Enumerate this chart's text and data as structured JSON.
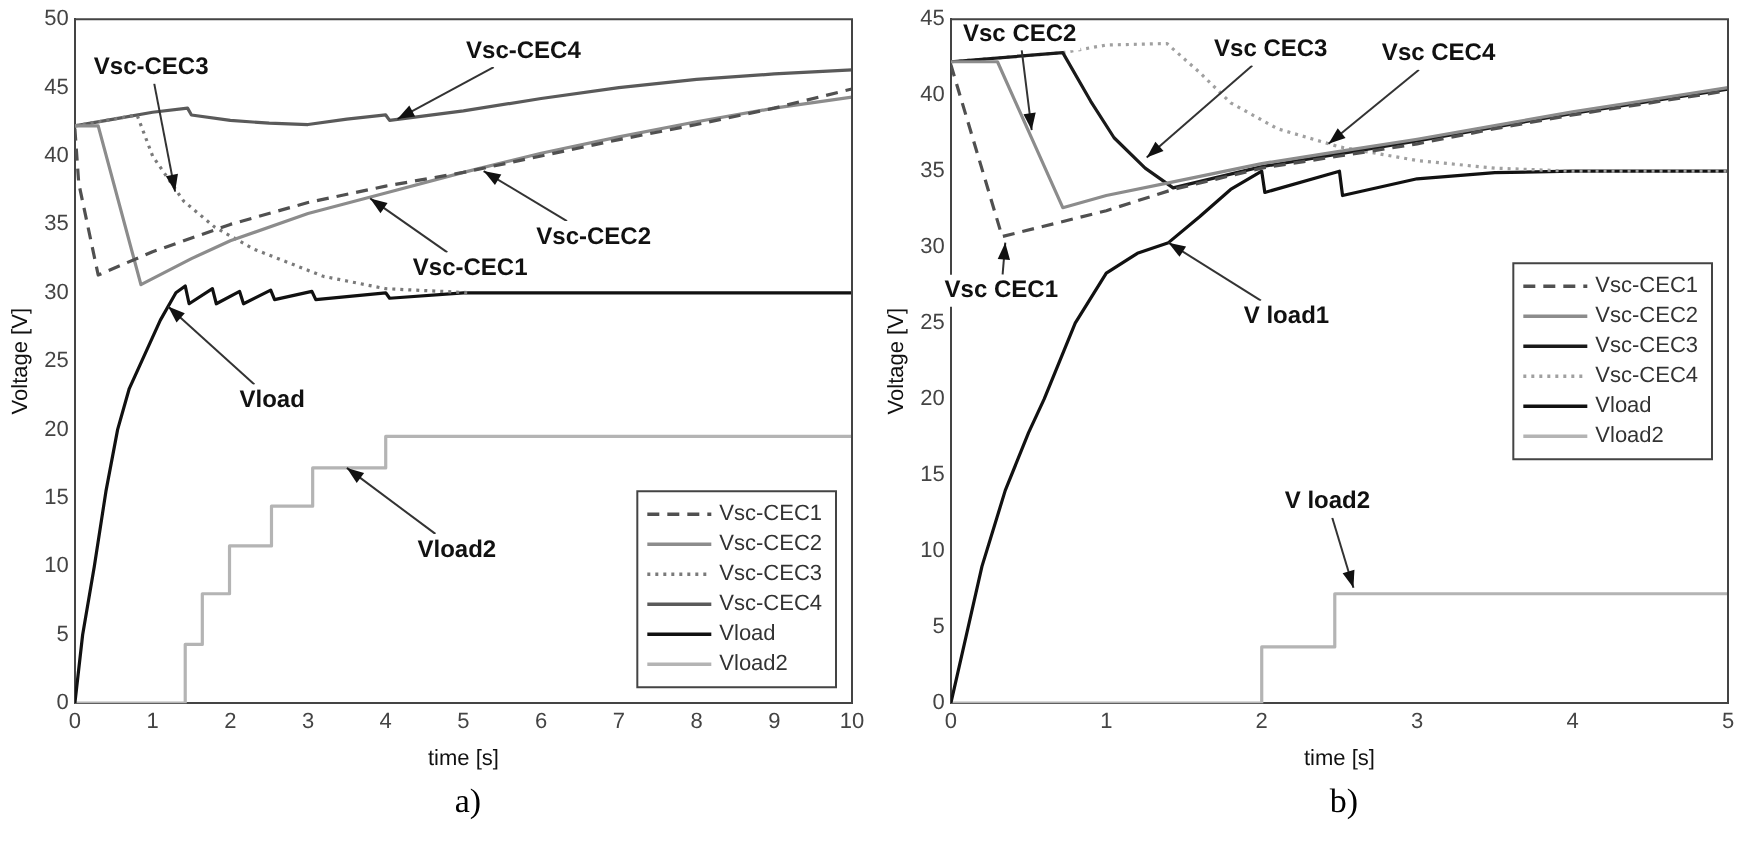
{
  "chart_data": [
    {
      "type": "line",
      "xlabel": "time [s]",
      "ylabel": "Voltage [V]",
      "xlim": [
        0,
        10
      ],
      "xticks": [
        0,
        1,
        2,
        3,
        4,
        5,
        6,
        7,
        8,
        9,
        10
      ],
      "ylim": [
        0,
        50
      ],
      "yticks": [
        0,
        5,
        10,
        15,
        20,
        25,
        30,
        35,
        40,
        45,
        50
      ],
      "legend": "bottom right",
      "series": [
        {
          "name": "Vsc-CEC1",
          "color": "#505050",
          "line_style": "dashed",
          "x": [
            0,
            0.05,
            0.3,
            1,
            2,
            3,
            4,
            5,
            6,
            7,
            8,
            9,
            10
          ],
          "values": [
            42,
            38,
            31.3,
            33,
            35,
            36.6,
            37.8,
            38.8,
            40,
            41.2,
            42.3,
            43.5,
            44.9
          ]
        },
        {
          "name": "Vsc-CEC2",
          "color": "#8c8c8c",
          "line_style": "solid",
          "x": [
            0,
            0.3,
            0.85,
            1.5,
            2,
            3,
            4,
            5,
            6,
            7,
            8,
            9,
            10
          ],
          "values": [
            42.2,
            42.2,
            30.6,
            32.5,
            33.8,
            35.8,
            37.3,
            38.8,
            40.2,
            41.4,
            42.5,
            43.5,
            44.3
          ]
        },
        {
          "name": "Vsc-CEC3",
          "color": "#7a7a7a",
          "line_style": "dotted",
          "x": [
            0,
            0.8,
            1,
            1.4,
            1.8,
            2.3,
            3.2,
            4,
            5.1
          ],
          "values": [
            42.2,
            43,
            40,
            36.7,
            34.8,
            33.2,
            31.2,
            30.3,
            30
          ]
        },
        {
          "name": "Vsc-CEC4",
          "color": "#5a5a5a",
          "line_style": "solid",
          "x": [
            0,
            0.5,
            1,
            1.45,
            1.5,
            2,
            2.5,
            3,
            3.5,
            4,
            4.05,
            5,
            6,
            7,
            8,
            9,
            10
          ],
          "values": [
            42.2,
            42.7,
            43.2,
            43.5,
            43,
            42.6,
            42.4,
            42.3,
            42.7,
            43,
            42.6,
            43.3,
            44.2,
            45,
            45.6,
            46,
            46.3
          ]
        },
        {
          "name": "Vload",
          "color": "#111111",
          "line_style": "solid",
          "x": [
            0,
            0.1,
            0.25,
            0.4,
            0.55,
            0.7,
            0.9,
            1.1,
            1.3,
            1.42,
            1.47,
            1.77,
            1.82,
            2.12,
            2.17,
            2.52,
            2.57,
            3.05,
            3.1,
            4,
            4.05,
            5,
            10
          ],
          "values": [
            0,
            5,
            10,
            15.5,
            20,
            23,
            25.5,
            28,
            30,
            30.5,
            29.2,
            30.3,
            29.2,
            30.1,
            29.2,
            30.2,
            29.5,
            30.1,
            29.5,
            30,
            29.6,
            30,
            30
          ]
        },
        {
          "name": "Vload2",
          "color": "#b4b4b4",
          "type": "step",
          "line_style": "solid",
          "x": [
            0,
            1.42,
            1.64,
            1.99,
            2.53,
            3.06,
            4,
            10
          ],
          "values": [
            0,
            4.3,
            8,
            11.5,
            14.4,
            17.2,
            19.5,
            19.5
          ]
        }
      ],
      "annotations": [
        {
          "text": "Vsc-CEC3",
          "x": 1.29,
          "y": 37.4
        },
        {
          "text": "Vsc-CEC4",
          "x": 4.15,
          "y": 42.7
        },
        {
          "text": "Vsc-CEC2",
          "x": 5.26,
          "y": 38.9
        },
        {
          "text": "Vsc-CEC1",
          "x": 3.8,
          "y": 36.9
        },
        {
          "text": "Vload",
          "x": 1.2,
          "y": 29
        },
        {
          "text": "Vload2",
          "x": 3.5,
          "y": 17.2
        },
        "a)"
      ]
    },
    {
      "type": "line",
      "xlabel": "time [s]",
      "ylabel": "Voltage [V]",
      "xlim": [
        0,
        5
      ],
      "xticks": [
        0,
        1,
        2,
        3,
        4,
        5
      ],
      "ylim": [
        0,
        45
      ],
      "yticks": [
        0,
        5,
        10,
        15,
        20,
        25,
        30,
        35,
        40,
        45
      ],
      "legend": "right",
      "series": [
        {
          "name": "Vsc-CEC1",
          "color": "#505050",
          "line_style": "dashed",
          "x": [
            0,
            0.33,
            1,
            1.43,
            2,
            2.5,
            3,
            3.5,
            4,
            4.5,
            5
          ],
          "values": [
            42,
            30.7,
            32.4,
            33.8,
            35.2,
            36,
            36.8,
            37.8,
            38.7,
            39.5,
            40.3
          ]
        },
        {
          "name": "Vsc-CEC2",
          "color": "#8c8c8c",
          "line_style": "solid",
          "x": [
            0,
            0.3,
            0.72,
            1,
            1.43,
            2,
            2.5,
            3,
            3.5,
            4,
            4.5,
            5
          ],
          "values": [
            42.2,
            42.2,
            32.6,
            33.4,
            34.3,
            35.5,
            36.3,
            37.1,
            38,
            38.9,
            39.7,
            40.5
          ]
        },
        {
          "name": "Vsc-CEC3",
          "color": "#1a1a1a",
          "line_style": "solid",
          "x": [
            0,
            0.72,
            0.9,
            1.05,
            1.25,
            1.43,
            2,
            3,
            4,
            5
          ],
          "values": [
            42.2,
            42.8,
            39.6,
            37.2,
            35.2,
            33.9,
            35.3,
            37,
            38.8,
            40.4
          ]
        },
        {
          "name": "Vsc-CEC4",
          "color": "#a0a0a0",
          "line_style": "dotted",
          "x": [
            0,
            0.72,
            1,
            1.39,
            1.6,
            1.8,
            2.1,
            2.5,
            3,
            3.5,
            4,
            5
          ],
          "values": [
            42.2,
            42.8,
            43.3,
            43.4,
            41.5,
            39.5,
            37.8,
            36.6,
            35.7,
            35.2,
            35,
            35
          ]
        },
        {
          "name": "Vload",
          "color": "#111111",
          "line_style": "solid",
          "x": [
            0,
            0.1,
            0.2,
            0.35,
            0.5,
            0.6,
            0.7,
            0.8,
            1,
            1.2,
            1.4,
            1.6,
            1.8,
            2,
            2.02,
            2.5,
            2.52,
            3,
            3.5,
            4,
            5
          ],
          "values": [
            0,
            4.5,
            9,
            14,
            17.8,
            20,
            22.5,
            25,
            28.3,
            29.6,
            30.3,
            32,
            33.8,
            35,
            33.6,
            35,
            33.4,
            34.5,
            34.9,
            35,
            35
          ]
        },
        {
          "name": "Vload2",
          "color": "#b4b4b4",
          "type": "step",
          "line_style": "solid",
          "x": [
            0,
            2,
            2.47,
            5
          ],
          "values": [
            0,
            3.7,
            7.2,
            7.2
          ]
        }
      ],
      "annotations": [
        {
          "text": "Vsc CEC2",
          "x": 0.52,
          "y": 37.7
        },
        {
          "text": "Vsc CEC3",
          "x": 1.26,
          "y": 35.9
        },
        {
          "text": "Vsc CEC4",
          "x": 2.43,
          "y": 36.8
        },
        {
          "text": "Vsc CEC1",
          "x": 0.35,
          "y": 30.3
        },
        {
          "text": "V load1",
          "x": 1.4,
          "y": 30.3
        },
        {
          "text": "V load2",
          "x": 2.59,
          "y": 7.6
        },
        "b)"
      ]
    }
  ]
}
